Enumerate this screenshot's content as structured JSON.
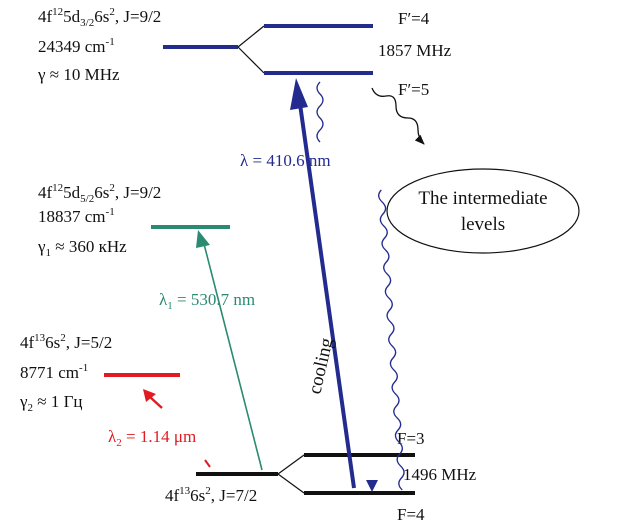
{
  "colors": {
    "blue": "#232b8f",
    "green": "#2a8a72",
    "red": "#e11b22",
    "black": "#111111"
  },
  "upper_level": {
    "config_main": "4f",
    "config_sup1": "12",
    "config_mid": "5d",
    "config_sub": "3/2",
    "config_tail": "6s",
    "config_sup2": "2",
    "config_j": ", J=9/2",
    "energy": "24349 cm",
    "energy_sup": "-1",
    "width": "γ ≈ 10 MHz",
    "f_upper": "F′=4",
    "f_lower": "F′=5",
    "splitting": "1857 MHz"
  },
  "middle_level": {
    "config_main": "4f",
    "config_sup1": "12",
    "config_mid": "5d",
    "config_sub": "5/2",
    "config_tail": "6s",
    "config_sup2": "2",
    "config_j": ", J=9/2",
    "energy": "18837 cm",
    "energy_sup": "-1",
    "width_sym": "γ",
    "width_sub": "1",
    "width_val": " ≈ 360 кHz"
  },
  "lower_level": {
    "config_main": "4f",
    "config_sup1": "13",
    "config_tail": "6s",
    "config_sup2": "2",
    "config_j": ", J=5/2",
    "energy": "8771 cm",
    "energy_sup": "-1",
    "width_sym": "γ",
    "width_sub": "2",
    "width_val": " ≈ 1 Гц"
  },
  "ground_level": {
    "config_main": "4f",
    "config_sup1": "13",
    "config_tail": "6s",
    "config_sup2": "2",
    "config_j": ", J=7/2",
    "f_upper": "F=3",
    "f_lower": "F=4",
    "splitting": "1496 MHz"
  },
  "transitions": {
    "blue_label": "λ = 410.6 nm",
    "cooling_label": "cooling",
    "green_sym": "λ",
    "green_sub": "1",
    "green_val": " = 530.7 nm",
    "red_sym": "λ",
    "red_sub": "2",
    "red_val": " = 1.14 μm"
  },
  "intermediate": {
    "line1": "The intermediate",
    "line2": "levels"
  }
}
